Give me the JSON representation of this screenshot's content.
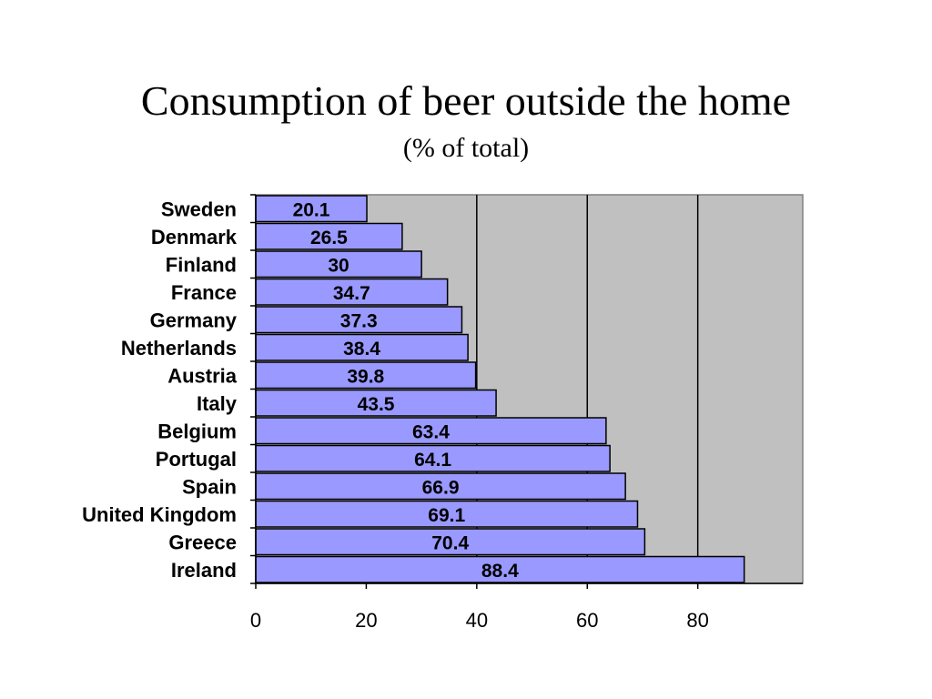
{
  "chart_data": {
    "type": "bar",
    "orientation": "horizontal",
    "title": "Consumption of beer outside the home",
    "subtitle": "(% of total)",
    "categories": [
      "Sweden",
      "Denmark",
      "Finland",
      "France",
      "Germany",
      "Netherlands",
      "Austria",
      "Italy",
      "Belgium",
      "Portugal",
      "Spain",
      "United Kingdom",
      "Greece",
      "Ireland"
    ],
    "values": [
      20.1,
      26.5,
      30,
      34.7,
      37.3,
      38.4,
      39.8,
      43.5,
      63.4,
      64.1,
      66.9,
      69.1,
      70.4,
      88.4
    ],
    "data_labels": [
      "20.1",
      "26.5",
      "30",
      "34.7",
      "37.3",
      "38.4",
      "39.8",
      "43.5",
      "63.4",
      "64.1",
      "66.9",
      "69.1",
      "70.4",
      "88.4"
    ],
    "x_ticks": [
      "0",
      "20",
      "40",
      "60",
      "80"
    ],
    "x_tick_values": [
      0,
      20,
      40,
      60,
      80
    ],
    "xlim": [
      0,
      99
    ],
    "gridlines": [
      40,
      60,
      80
    ],
    "grid": true,
    "legend": "none",
    "colors": {
      "bar_fill": "#9999ff",
      "bar_stroke": "#000000",
      "plot_background": "#c0c0c0",
      "gridline": "#000000"
    }
  }
}
